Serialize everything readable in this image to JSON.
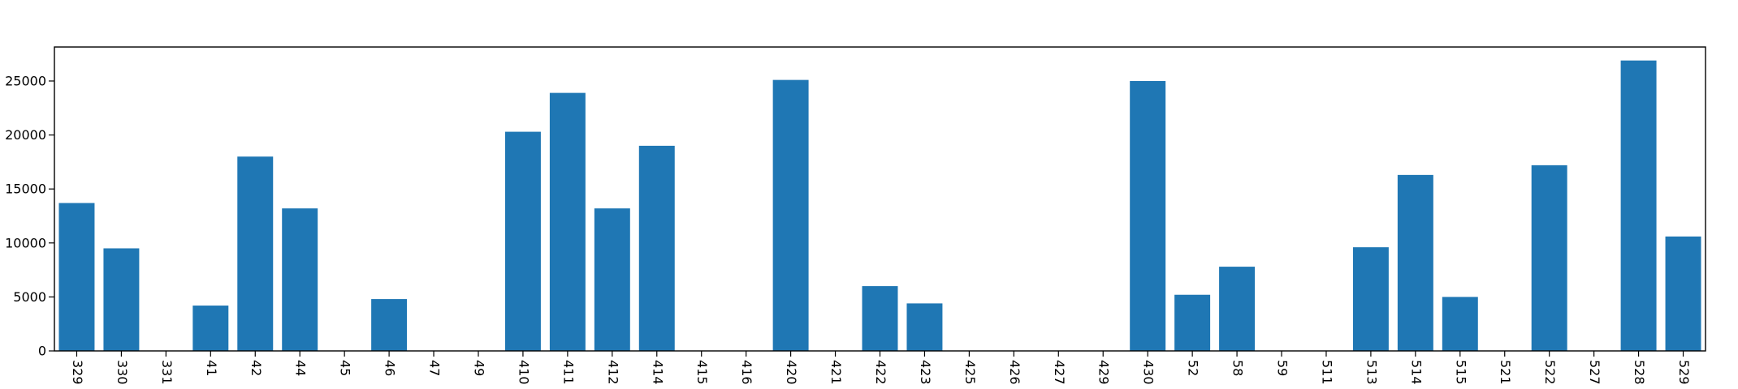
{
  "colors": {
    "bar": "#1f77b4",
    "axis": "#000000",
    "background": "#ffffff"
  },
  "chart_data": {
    "type": "bar",
    "title": "",
    "xlabel": "",
    "ylabel": "",
    "categories": [
      "329",
      "330",
      "331",
      "41",
      "42",
      "44",
      "45",
      "46",
      "47",
      "49",
      "410",
      "411",
      "412",
      "414",
      "415",
      "416",
      "420",
      "421",
      "422",
      "423",
      "425",
      "426",
      "427",
      "429",
      "430",
      "52",
      "58",
      "59",
      "511",
      "513",
      "514",
      "515",
      "521",
      "522",
      "527",
      "528",
      "529"
    ],
    "values": [
      13700,
      9500,
      0,
      4200,
      18000,
      13200,
      0,
      4800,
      0,
      0,
      20300,
      23900,
      13200,
      19000,
      0,
      0,
      25100,
      0,
      6000,
      4400,
      0,
      0,
      0,
      0,
      25000,
      5200,
      7800,
      0,
      0,
      9600,
      16300,
      5000,
      0,
      17200,
      0,
      26900,
      10600
    ],
    "ylim": [
      0,
      28150
    ],
    "yticks": [
      0,
      5000,
      10000,
      15000,
      20000,
      25000
    ],
    "grid": false,
    "legend": "none"
  }
}
